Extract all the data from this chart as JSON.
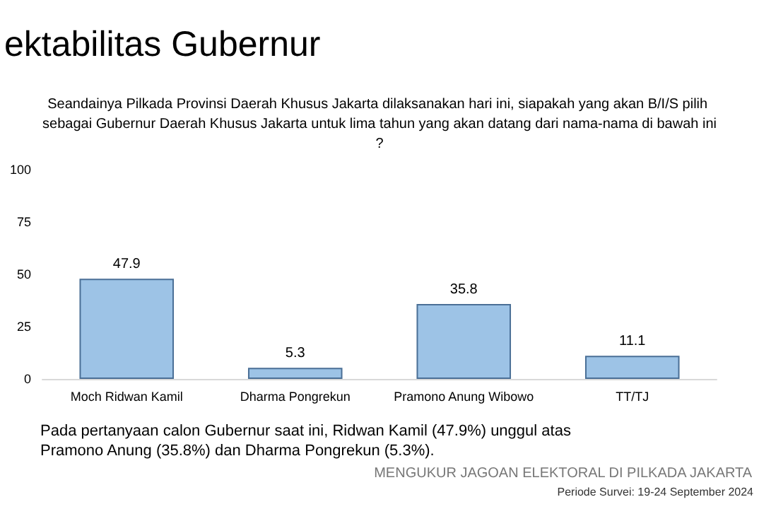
{
  "chart_data": {
    "type": "bar",
    "title": "ektabilitas Gubernur",
    "subtitle": "Seandainya Pilkada Provinsi Daerah Khusus Jakarta dilaksanakan hari ini, siapakah yang akan B/I/S pilih sebagai Gubernur Daerah Khusus Jakarta untuk lima tahun yang akan datang dari nama-nama di bawah ini?",
    "categories": [
      "Moch Ridwan Kamil",
      "Dharma Pongrekun",
      "Pramono Anung Wibowo",
      "TT/TJ"
    ],
    "values": [
      47.9,
      5.3,
      35.8,
      11.1
    ],
    "color": "#9dc3e6",
    "ylim": [
      0,
      100
    ],
    "yticks": [
      0,
      25,
      50,
      75,
      100
    ],
    "grid": false,
    "data_labels": true,
    "annotations": [
      "Pada pertanyaan calon Gubernur saat ini, Ridwan Kamil (47.9%) unggul atas Pramono Anung (35.8%) dan Dharma Pongrekun (5.3%).",
      "MENGUKUR JAGOAN ELEKTORAL DI PILKADA JAKARTA",
      "Periode Survei: 19-24 September 2024"
    ]
  }
}
